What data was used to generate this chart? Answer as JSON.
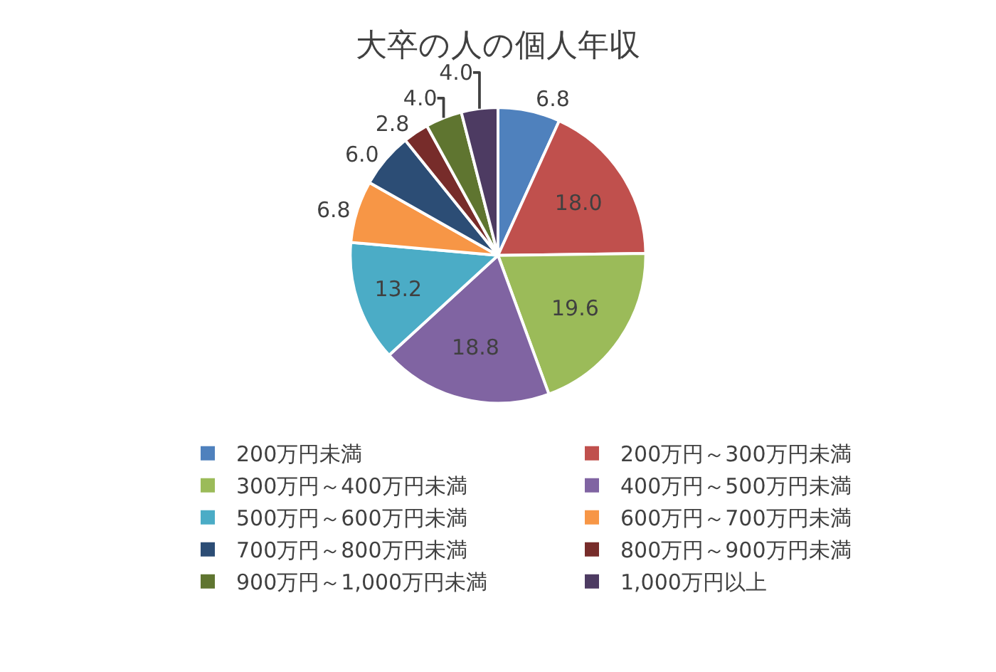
{
  "chart_data": {
    "type": "pie",
    "title": "大卒の人の個人年収",
    "categories": [
      "200万円未満",
      "200万円～300万円未満",
      "300万円～400万円未満",
      "400万円～500万円未満",
      "500万円～600万円未満",
      "600万円～700万円未満",
      "700万円～800万円未満",
      "800万円～900万円未満",
      "900万円～1,000万円未満",
      "1,000万円以上"
    ],
    "values": [
      6.8,
      18.0,
      19.6,
      18.8,
      13.2,
      6.8,
      6.0,
      2.8,
      4.0,
      4.0
    ],
    "value_labels": [
      "6.8",
      "18.0",
      "19.6",
      "18.8",
      "13.2",
      "6.8",
      "6.0",
      "2.8",
      "4.0",
      "4.0"
    ],
    "colors": [
      "#4f81bd",
      "#c0504d",
      "#9bbb59",
      "#8064a2",
      "#4bacc6",
      "#f79646",
      "#2c4d75",
      "#772c2a",
      "#5f7530",
      "#4d3b62"
    ],
    "legend": "bottom"
  }
}
